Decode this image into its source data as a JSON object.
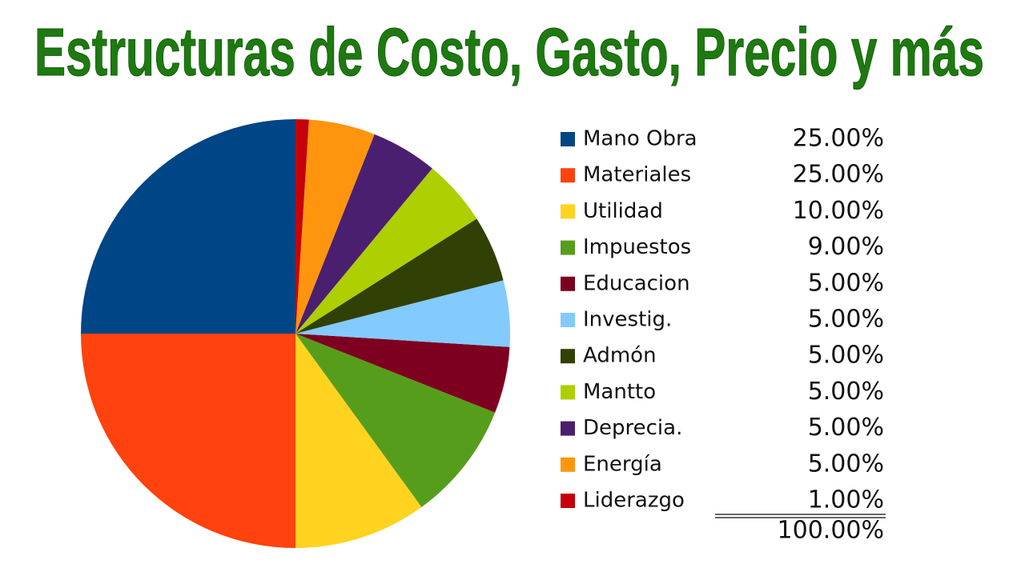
{
  "chart_data": {
    "type": "pie",
    "title": "Estructuras de Costo, Gasto, Precio y más",
    "categories": [
      "Mano Obra",
      "Materiales",
      "Utilidad",
      "Impuestos",
      "Educacion",
      "Investig.",
      "Admón",
      "Mantto",
      "Deprecia.",
      "Energía",
      "Liderazgo"
    ],
    "values": [
      25,
      25,
      10,
      9,
      5,
      5,
      5,
      5,
      5,
      5,
      1
    ],
    "value_labels": [
      "25.00%",
      "25.00%",
      "10.00%",
      "9.00%",
      "5.00%",
      "5.00%",
      "5.00%",
      "5.00%",
      "5.00%",
      "5.00%",
      "1.00%"
    ],
    "colors": [
      "#004586",
      "#ff420e",
      "#ffd320",
      "#579d1c",
      "#7e0021",
      "#83caff",
      "#314004",
      "#aecf00",
      "#4b1f6f",
      "#ff950e",
      "#c5000b"
    ],
    "total": {
      "value": 100,
      "label": "100.00%"
    }
  }
}
